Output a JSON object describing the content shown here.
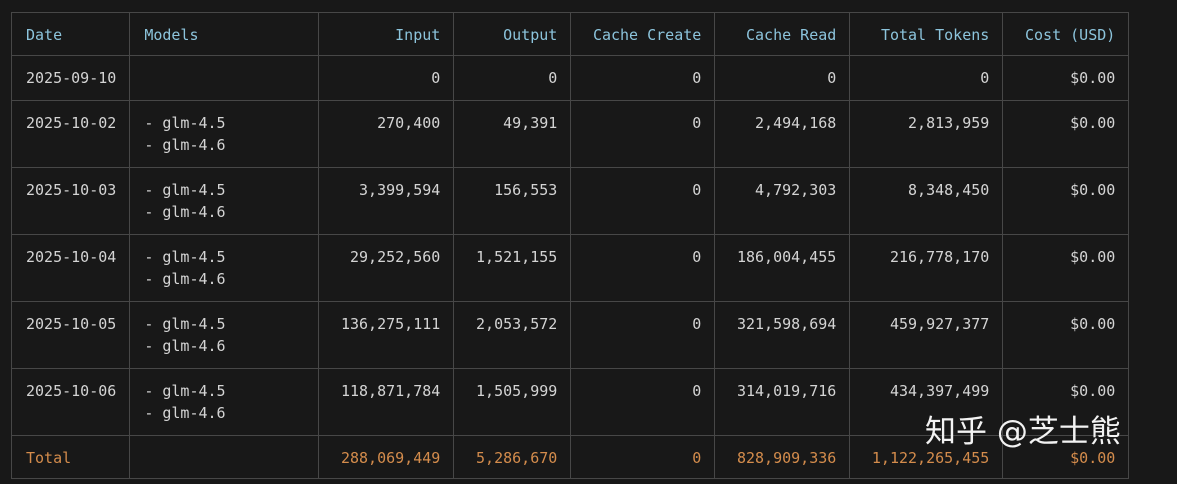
{
  "table": {
    "header": [
      "Date",
      "Models",
      "Input",
      "Output",
      "Cache Create",
      "Cache Read",
      "Total Tokens",
      "Cost (USD)"
    ],
    "rows": [
      [
        "2025-09-10",
        [],
        "0",
        "0",
        "0",
        "0",
        "0",
        "$0.00"
      ],
      [
        "2025-10-02",
        [
          "- glm-4.5",
          "- glm-4.6"
        ],
        "270,400",
        "49,391",
        "0",
        "2,494,168",
        "2,813,959",
        "$0.00"
      ],
      [
        "2025-10-03",
        [
          "- glm-4.5",
          "- glm-4.6"
        ],
        "3,399,594",
        "156,553",
        "0",
        "4,792,303",
        "8,348,450",
        "$0.00"
      ],
      [
        "2025-10-04",
        [
          "- glm-4.5",
          "- glm-4.6"
        ],
        "29,252,560",
        "1,521,155",
        "0",
        "186,004,455",
        "216,778,170",
        "$0.00"
      ],
      [
        "2025-10-05",
        [
          "- glm-4.5",
          "- glm-4.6"
        ],
        "136,275,111",
        "2,053,572",
        "0",
        "321,598,694",
        "459,927,377",
        "$0.00"
      ],
      [
        "2025-10-06",
        [
          "- glm-4.5",
          "- glm-4.6"
        ],
        "118,871,784",
        "1,505,999",
        "0",
        "314,019,716",
        "434,397,499",
        "$0.00"
      ]
    ],
    "total": [
      "Total",
      [],
      "288,069,449",
      "5,286,670",
      "0",
      "828,909,336",
      "1,122,265,455",
      "$0.00"
    ]
  },
  "watermark": "知乎 @芝士熊"
}
